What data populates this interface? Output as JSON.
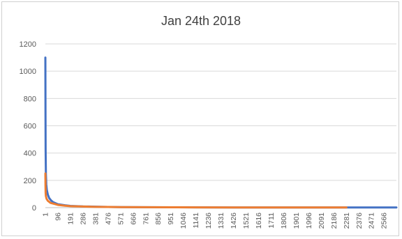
{
  "chart_data": {
    "type": "line",
    "title": "Jan 24th 2018",
    "xlabel": "",
    "ylabel": "",
    "ylim": [
      0,
      1200
    ],
    "yticks": [
      0,
      200,
      400,
      600,
      800,
      1000,
      1200
    ],
    "xlim": [
      1,
      2660
    ],
    "x_tick_labels": [
      "1",
      "96",
      "191",
      "286",
      "381",
      "476",
      "571",
      "666",
      "761",
      "856",
      "951",
      "1046",
      "1141",
      "1236",
      "1331",
      "1426",
      "1521",
      "1616",
      "1711",
      "1806",
      "1901",
      "1996",
      "2091",
      "2186",
      "2281",
      "2376",
      "2471",
      "2566"
    ],
    "grid": true,
    "legend": "none",
    "series": [
      {
        "color": "#4472C4",
        "points": [
          [
            1,
            1100
          ],
          [
            2,
            700
          ],
          [
            3,
            420
          ],
          [
            5,
            250
          ],
          [
            8,
            170
          ],
          [
            12,
            130
          ],
          [
            20,
            95
          ],
          [
            30,
            70
          ],
          [
            45,
            52
          ],
          [
            60,
            40
          ],
          [
            96,
            25
          ],
          [
            150,
            17
          ],
          [
            191,
            13
          ],
          [
            286,
            9
          ],
          [
            381,
            7
          ],
          [
            476,
            5
          ],
          [
            571,
            4
          ],
          [
            761,
            3
          ],
          [
            951,
            2.5
          ],
          [
            1141,
            2
          ],
          [
            1426,
            1.5
          ],
          [
            1806,
            1.2
          ],
          [
            2281,
            1
          ],
          [
            2660,
            1
          ]
        ]
      },
      {
        "color": "#ED7D31",
        "points": [
          [
            1,
            250
          ],
          [
            2,
            160
          ],
          [
            3,
            110
          ],
          [
            5,
            85
          ],
          [
            10,
            65
          ],
          [
            20,
            50
          ],
          [
            40,
            35
          ],
          [
            70,
            27
          ],
          [
            96,
            20
          ],
          [
            150,
            14
          ],
          [
            191,
            11
          ],
          [
            286,
            8
          ],
          [
            381,
            6
          ],
          [
            476,
            5
          ],
          [
            571,
            4
          ],
          [
            761,
            3
          ],
          [
            951,
            2.5
          ],
          [
            1141,
            2
          ],
          [
            1426,
            1.5
          ],
          [
            1806,
            1.2
          ],
          [
            2281,
            1
          ]
        ]
      }
    ]
  }
}
